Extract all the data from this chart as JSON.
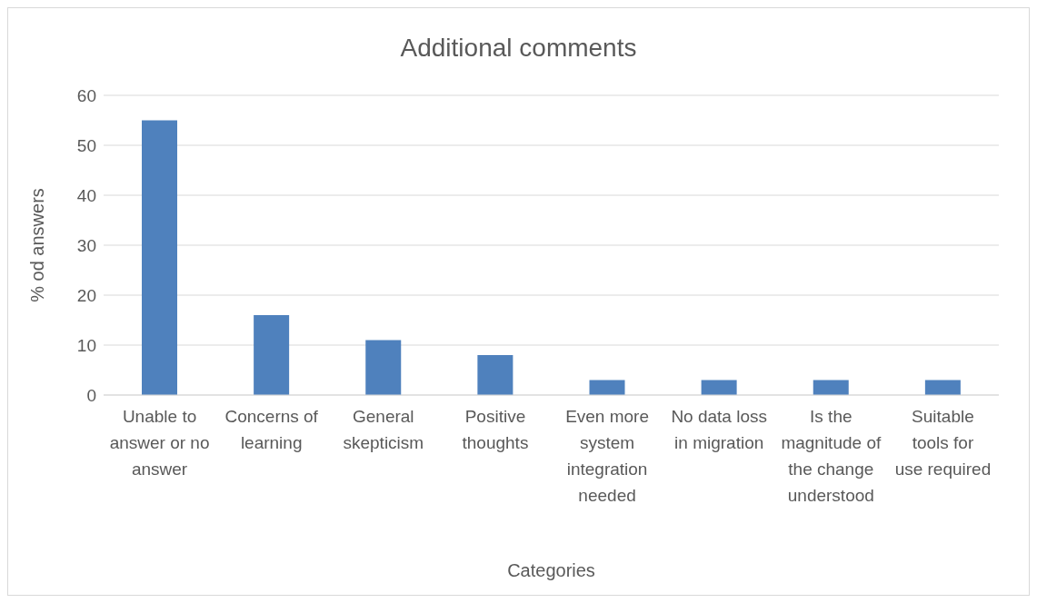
{
  "chart_data": {
    "type": "bar",
    "title": "Additional comments",
    "xlabel": "Categories",
    "ylabel": "% od answers",
    "categories": [
      "Unable to answer or no answer",
      "Concerns of learning",
      "General skepticism",
      "Positive thoughts",
      "Even more system integration needed",
      "No data loss in migration",
      "Is the magnitude of the change understood",
      "Suitable tools for use required"
    ],
    "values": [
      55,
      16,
      11,
      8,
      3,
      3,
      3,
      3
    ],
    "color": "#4f81bd",
    "ylim": [
      0,
      60
    ],
    "yticks": [
      0,
      10,
      20,
      30,
      40,
      50,
      60
    ],
    "grid": "y"
  }
}
